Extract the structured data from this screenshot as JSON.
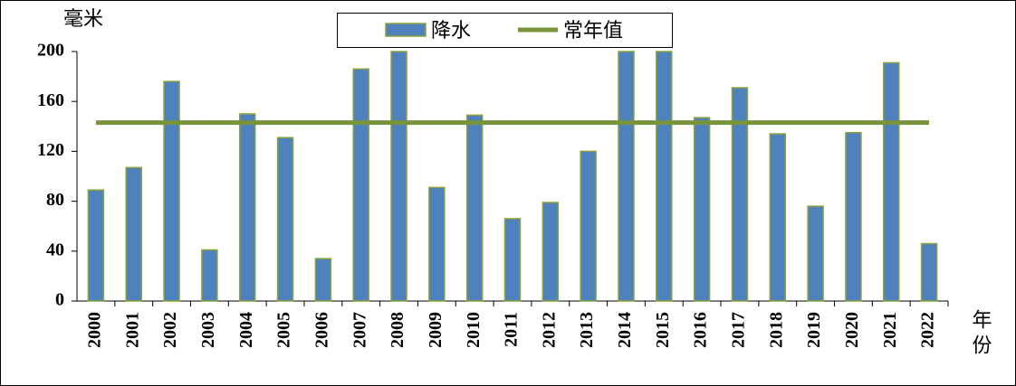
{
  "chart_data": {
    "type": "bar",
    "y_label": "毫米",
    "x_label": "年份",
    "categories": [
      "2000",
      "2001",
      "2002",
      "2003",
      "2004",
      "2005",
      "2006",
      "2007",
      "2008",
      "2009",
      "2010",
      "2011",
      "2012",
      "2013",
      "2014",
      "2015",
      "2016",
      "2017",
      "2018",
      "2019",
      "2020",
      "2021",
      "2022"
    ],
    "series": [
      {
        "name": "降水",
        "type": "bar",
        "color": "#4f81bd",
        "values": [
          89,
          107,
          176,
          41,
          150,
          131,
          34,
          186,
          200,
          91,
          149,
          66,
          79,
          120,
          200,
          200,
          147,
          171,
          134,
          76,
          135,
          191,
          46
        ]
      },
      {
        "name": "常年值",
        "type": "line",
        "color": "#77933c",
        "values": [
          143,
          143,
          143,
          143,
          143,
          143,
          143,
          143,
          143,
          143,
          143,
          143,
          143,
          143,
          143,
          143,
          143,
          143,
          143,
          143,
          143,
          143,
          143
        ]
      }
    ],
    "ylim": [
      0,
      200
    ],
    "yticks": [
      0,
      40,
      80,
      120,
      160,
      200
    ],
    "legend": "top"
  }
}
